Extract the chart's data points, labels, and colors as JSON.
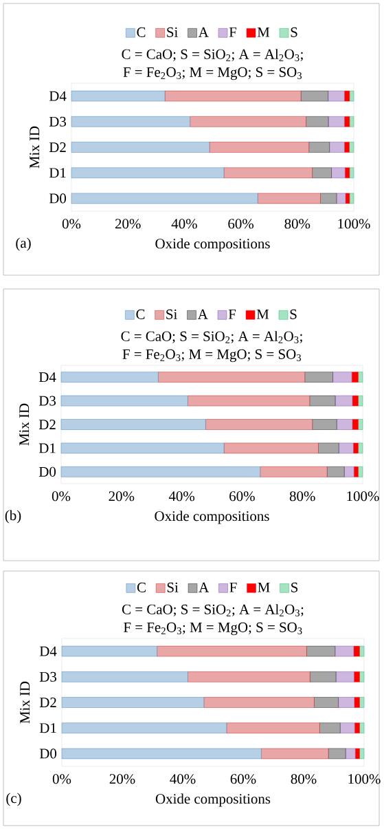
{
  "chart_data": [
    {
      "type": "bar",
      "orientation": "horizontal",
      "stacked": true,
      "legend": "top",
      "xlabel": "Oxide compositions",
      "ylabel": "Mix ID",
      "categories": [
        "D4",
        "D3",
        "D2",
        "D1",
        "D0"
      ],
      "series": [
        {
          "name": "C",
          "color": "#2e75b6",
          "values": [
            33.1,
            42.0,
            48.9,
            54.0,
            66.0
          ]
        },
        {
          "name": "Si",
          "color": "#c00000",
          "values": [
            48.2,
            41.1,
            35.2,
            31.3,
            22.2
          ]
        },
        {
          "name": "A",
          "color": "#000000",
          "values": [
            9.6,
            7.9,
            7.3,
            6.8,
            5.7
          ]
        },
        {
          "name": "F",
          "color": "#7030a0",
          "values": [
            5.8,
            5.7,
            5.3,
            4.8,
            3.2
          ]
        },
        {
          "name": "M",
          "color": "#ff0000",
          "values": [
            1.8,
            1.8,
            1.7,
            1.6,
            1.4
          ]
        },
        {
          "name": "S",
          "color": "#00b050",
          "values": [
            1.5,
            1.5,
            1.6,
            1.5,
            1.5
          ]
        }
      ],
      "xlim": [
        0,
        100
      ],
      "xticks": [
        {
          "value": 0,
          "label": "0%"
        },
        {
          "value": 20,
          "label": "20%"
        },
        {
          "value": 40,
          "label": "40%"
        },
        {
          "value": 60,
          "label": "60%"
        },
        {
          "value": 80,
          "label": "80%"
        },
        {
          "value": 100,
          "label": "100%"
        }
      ],
      "annotations": [
        "C = CaO; S = SiO$_{2}$; A = Al$_{2}$O$_{3}$;",
        "F = Fe$_{2}$O$_{3}$; M = MgO; S = SO$_{3}$",
        "(a)"
      ]
    },
    {
      "type": "bar",
      "orientation": "horizontal",
      "stacked": true,
      "legend": "top",
      "xlabel": "Oxide compositions",
      "ylabel": "Mix ID",
      "categories": [
        "D4",
        "D3",
        "D2",
        "D1",
        "D0"
      ],
      "series": [
        {
          "name": "C",
          "color": "#2e75b6",
          "values": [
            32.2,
            42.0,
            47.9,
            54.0,
            66.0
          ]
        },
        {
          "name": "Si",
          "color": "#c00000",
          "values": [
            48.6,
            40.4,
            35.4,
            31.3,
            22.2
          ]
        },
        {
          "name": "A",
          "color": "#000000",
          "values": [
            9.3,
            8.5,
            8.1,
            6.8,
            5.7
          ]
        },
        {
          "name": "F",
          "color": "#7030a0",
          "values": [
            6.3,
            5.7,
            5.2,
            4.8,
            3.2
          ]
        },
        {
          "name": "M",
          "color": "#ff0000",
          "values": [
            2.1,
            1.9,
            1.9,
            1.6,
            1.4
          ]
        },
        {
          "name": "S",
          "color": "#00b050",
          "values": [
            1.5,
            1.5,
            1.5,
            1.5,
            1.5
          ]
        }
      ],
      "xlim": [
        0,
        100
      ],
      "xticks": [
        {
          "value": 0,
          "label": "0%"
        },
        {
          "value": 20,
          "label": "20%"
        },
        {
          "value": 40,
          "label": "40%"
        },
        {
          "value": 60,
          "label": "60%"
        },
        {
          "value": 80,
          "label": "80%"
        },
        {
          "value": 100,
          "label": "100%"
        }
      ],
      "annotations": [
        "C = CaO; S = SiO$_{2}$; A = Al$_{2}$O$_{3}$;",
        "F = Fe$_{2}$O$_{3}$; M = MgO; S = SO$_{3}$",
        "(b)"
      ]
    },
    {
      "type": "bar",
      "orientation": "horizontal",
      "stacked": true,
      "legend": "top",
      "xlabel": "Oxide compositions",
      "ylabel": "Mix ID",
      "categories": [
        "D4",
        "D3",
        "D2",
        "D1",
        "D0"
      ],
      "series": [
        {
          "name": "C",
          "color": "#2e75b6",
          "values": [
            31.5,
            41.7,
            47.0,
            54.5,
            66.0
          ]
        },
        {
          "name": "Si",
          "color": "#c00000",
          "values": [
            49.5,
            40.4,
            36.5,
            30.8,
            22.2
          ]
        },
        {
          "name": "A",
          "color": "#000000",
          "values": [
            9.4,
            8.6,
            8.0,
            6.8,
            5.7
          ]
        },
        {
          "name": "F",
          "color": "#7030a0",
          "values": [
            6.2,
            6.0,
            5.3,
            4.8,
            3.2
          ]
        },
        {
          "name": "M",
          "color": "#ff0000",
          "values": [
            1.9,
            1.8,
            1.7,
            1.6,
            1.4
          ]
        },
        {
          "name": "S",
          "color": "#00b050",
          "values": [
            1.5,
            1.5,
            1.5,
            1.5,
            1.5
          ]
        }
      ],
      "xlim": [
        0,
        100
      ],
      "xticks": [
        {
          "value": 0,
          "label": "0%"
        },
        {
          "value": 20,
          "label": "20%"
        },
        {
          "value": 40,
          "label": "40%"
        },
        {
          "value": 60,
          "label": "60%"
        },
        {
          "value": 80,
          "label": "80%"
        },
        {
          "value": 100,
          "label": "100%"
        }
      ],
      "annotations": [
        "C = CaO; S = SiO$_{2}$; A = Al$_{2}$O$_{3}$;",
        "F = Fe$_{2}$O$_{3}$; M = MgO; S = SO$_{3}$",
        "(c)"
      ]
    }
  ]
}
